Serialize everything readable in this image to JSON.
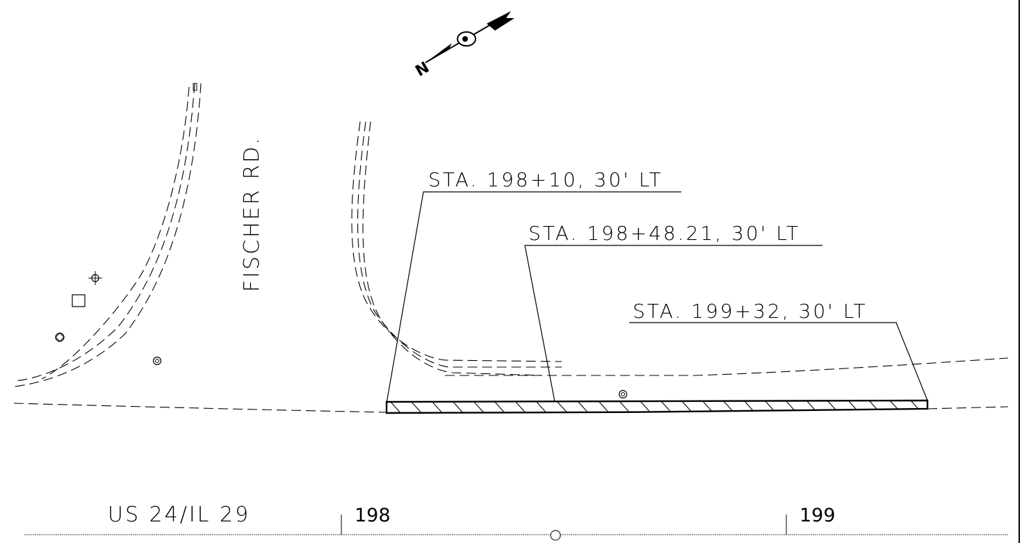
{
  "road_label": "FISCHER RD.",
  "callouts": [
    {
      "label": "STA. 198+10, 30' LT"
    },
    {
      "label": "STA. 198+48.21, 30' LT"
    },
    {
      "label": "STA. 199+32, 30' LT"
    }
  ],
  "route_label": "US 24/IL 29",
  "stations": [
    {
      "label": "198"
    },
    {
      "label": "199"
    }
  ],
  "north_arrow_letter": "N"
}
